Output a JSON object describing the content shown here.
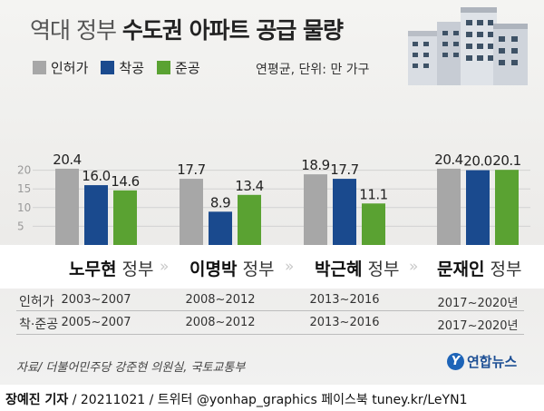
{
  "title": {
    "light": "역대 정부",
    "bold": "수도권 아파트 공급 물량"
  },
  "legend": [
    {
      "label": "인허가",
      "color": "#a7a7a7"
    },
    {
      "label": "착공",
      "color": "#1a4a8e"
    },
    {
      "label": "준공",
      "color": "#5aa232"
    }
  ],
  "unit": "연평균, 단위: 만 가구",
  "chart_data": {
    "type": "bar",
    "categories": [
      "노무현 정부",
      "이명박 정부",
      "박근혜 정부",
      "문재인 정부"
    ],
    "series": [
      {
        "name": "인허가",
        "values": [
          20.4,
          17.7,
          18.9,
          20.4
        ]
      },
      {
        "name": "착공",
        "values": [
          16.0,
          8.9,
          17.7,
          20.0
        ]
      },
      {
        "name": "준공",
        "values": [
          14.6,
          13.4,
          11.1,
          20.1
        ]
      }
    ],
    "value_labels": [
      [
        "20.4",
        "16.0",
        "14.6"
      ],
      [
        "17.7",
        "8.9",
        "13.4"
      ],
      [
        "18.9",
        "17.7",
        "11.1"
      ],
      [
        "20.4",
        "20.0",
        "20.1"
      ]
    ],
    "yticks": [
      "20",
      "15",
      "10",
      "5"
    ],
    "ylim": [
      0,
      22
    ],
    "grid": true,
    "legend": "top-left"
  },
  "governments": [
    {
      "name": "노무현",
      "suffix": "정부"
    },
    {
      "name": "이명박",
      "suffix": "정부"
    },
    {
      "name": "박근혜",
      "suffix": "정부"
    },
    {
      "name": "문재인",
      "suffix": "정부"
    }
  ],
  "chevron": "»",
  "periods": {
    "permits_label": "인허가",
    "starts_label": "착·준공",
    "permits": [
      "2003~2007",
      "2008~2012",
      "2013~2016",
      "2017~2020년"
    ],
    "starts": [
      "2005~2007",
      "2008~2012",
      "2013~2016",
      "2017~2020년"
    ]
  },
  "source": "자료/ 더불어민주당 강준현 의원실, 국토교통부",
  "logo": {
    "mark": "Y",
    "text": "연합뉴스"
  },
  "credit": {
    "author": "장예진 기자",
    "rest": " / 20211021 / 트위터 @yonhap_graphics  페이스북 tuney.kr/LeYN1"
  }
}
